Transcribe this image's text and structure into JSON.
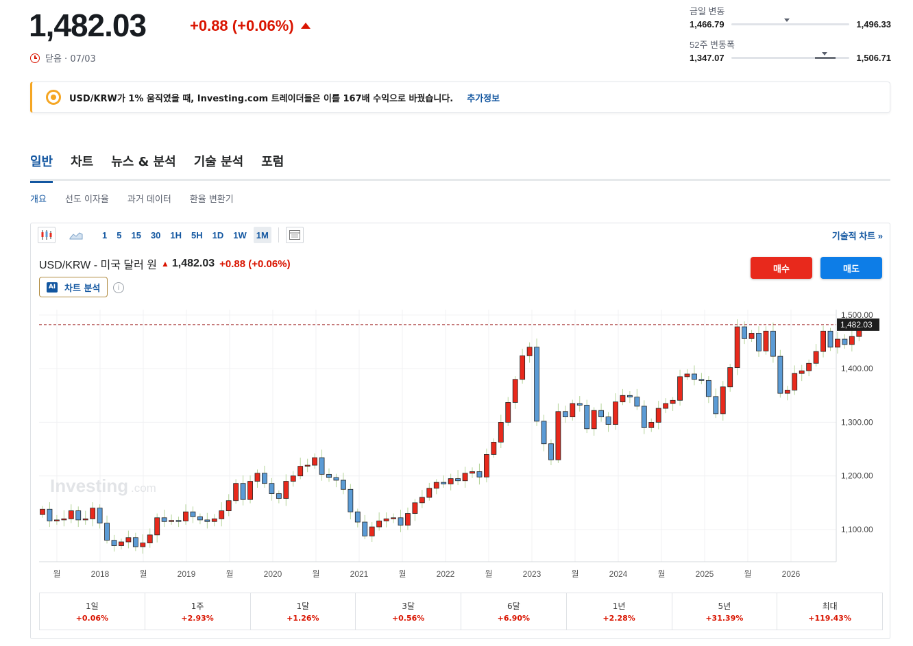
{
  "header": {
    "price": "1,482.03",
    "change": "+0.88 (+0.06%)",
    "close_label": "닫음 · 07/03"
  },
  "ranges": {
    "day": {
      "label": "금일 변동",
      "low": "1,466.79",
      "high": "1,496.33",
      "position": 0.52
    },
    "week52": {
      "label": "52주 변동폭",
      "low": "1,347.07",
      "high": "1,506.71",
      "position": 0.85
    }
  },
  "promo": {
    "text": "USD/KRW가 1% 움직였을 때, Investing.com 트레이더들은 이를 167배 수익으로 바꿨습니다.",
    "link": "추가정보"
  },
  "tabs": [
    "일반",
    "차트",
    "뉴스 & 분석",
    "기술 분석",
    "포럼"
  ],
  "subtabs": [
    "개요",
    "선도 이자율",
    "과거 데이터",
    "환율 변환기"
  ],
  "toolbar": {
    "intervals": [
      "1",
      "5",
      "15",
      "30",
      "1H",
      "5H",
      "1D",
      "1W",
      "1M"
    ],
    "active_interval": "1M",
    "tech_chart": "기술적 차트 »"
  },
  "chart_header": {
    "symbol": "USD/KRW - 미국 달러 원",
    "price": "1,482.03",
    "change": "+0.88 (+0.06%)",
    "buy": "매수",
    "sell": "매도",
    "ai": "차트 분석"
  },
  "colors": {
    "up": "#e8291c",
    "down": "#5b9bd5",
    "accent": "#1256a0",
    "negative_text": "#d91400"
  },
  "chart_data": {
    "type": "candlestick",
    "interval": "1M",
    "ylim": [
      1040,
      1510
    ],
    "y_ticks": [
      "1,100.00",
      "1,200.00",
      "1,300.00",
      "1,400.00",
      "1,500.00"
    ],
    "y_tick_values": [
      1100,
      1200,
      1300,
      1400,
      1500
    ],
    "x_ticks": [
      "월",
      "2018",
      "월",
      "2019",
      "월",
      "2020",
      "월",
      "2021",
      "월",
      "2022",
      "월",
      "2023",
      "월",
      "2024",
      "월",
      "2025",
      "월",
      "2026"
    ],
    "last_price": 1482.03,
    "last_price_label": "1,482.03",
    "watermark": "Investing",
    "closes": [
      1138,
      1116,
      1118,
      1120,
      1135,
      1118,
      1120,
      1140,
      1112,
      1080,
      1070,
      1077,
      1085,
      1068,
      1075,
      1090,
      1122,
      1115,
      1117,
      1116,
      1133,
      1124,
      1118,
      1115,
      1120,
      1135,
      1154,
      1186,
      1156,
      1190,
      1205,
      1186,
      1167,
      1158,
      1190,
      1200,
      1218,
      1220,
      1234,
      1203,
      1197,
      1192,
      1175,
      1133,
      1114,
      1088,
      1105,
      1116,
      1120,
      1122,
      1108,
      1130,
      1150,
      1160,
      1177,
      1188,
      1185,
      1195,
      1191,
      1205,
      1208,
      1198,
      1240,
      1263,
      1300,
      1337,
      1380,
      1424,
      1440,
      1302,
      1260,
      1230,
      1320,
      1310,
      1335,
      1332,
      1288,
      1322,
      1310,
      1296,
      1338,
      1350,
      1347,
      1330,
      1290,
      1300,
      1326,
      1335,
      1341,
      1385,
      1390,
      1380,
      1378,
      1348,
      1316,
      1366,
      1402,
      1478,
      1456,
      1466,
      1433,
      1470,
      1423,
      1354,
      1360,
      1391,
      1396,
      1410,
      1432,
      1470,
      1440,
      1455,
      1445,
      1460,
      1482.03
    ],
    "series_note": "monthly OHLC candles derived from closes"
  },
  "performance": [
    {
      "label": "1일",
      "value": "+0.06%"
    },
    {
      "label": "1주",
      "value": "+2.93%"
    },
    {
      "label": "1달",
      "value": "+1.26%"
    },
    {
      "label": "3달",
      "value": "+0.56%"
    },
    {
      "label": "6달",
      "value": "+6.90%"
    },
    {
      "label": "1년",
      "value": "+2.28%"
    },
    {
      "label": "5년",
      "value": "+31.39%"
    },
    {
      "label": "최대",
      "value": "+119.43%"
    }
  ]
}
